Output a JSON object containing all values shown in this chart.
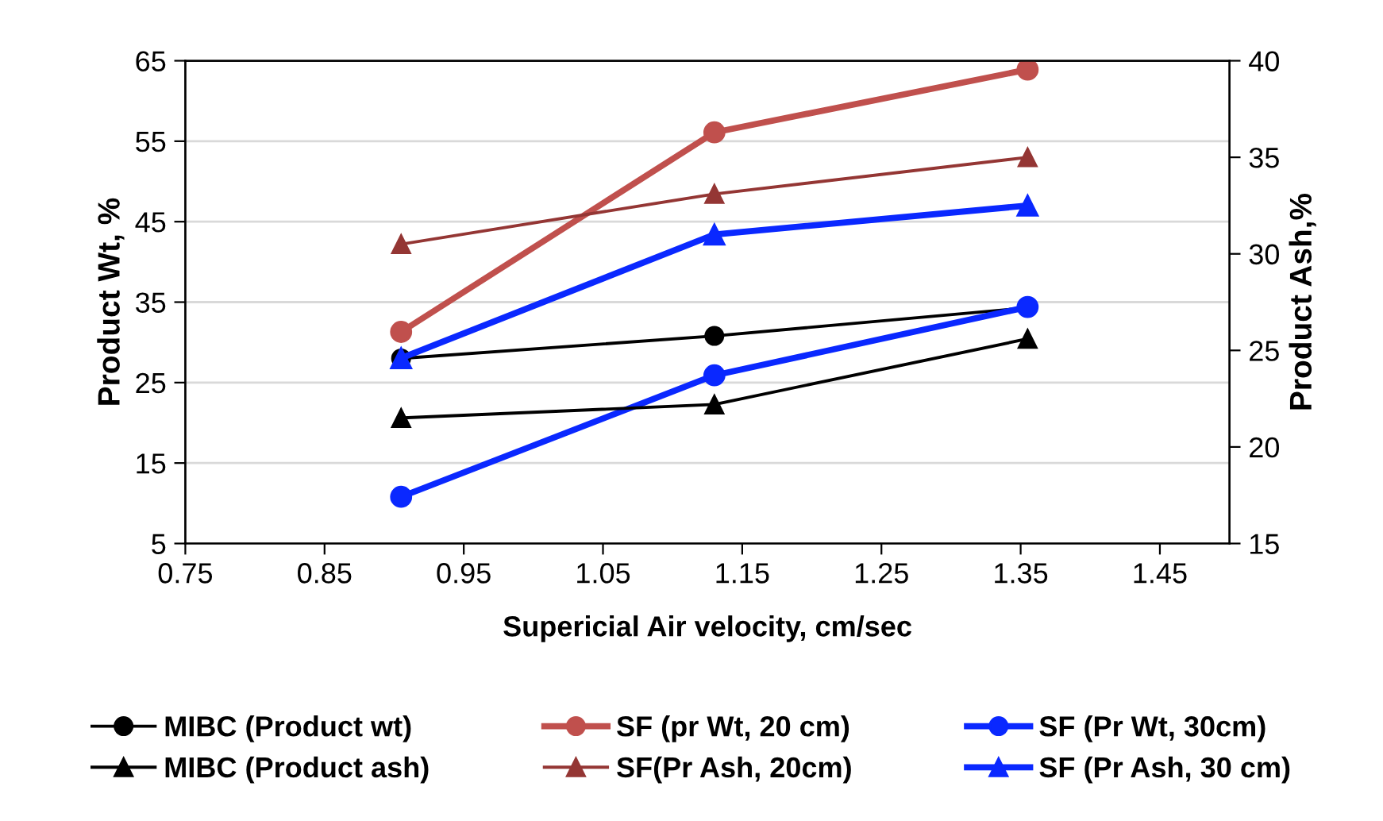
{
  "chart_data": {
    "type": "line",
    "xlabel": "Supericial Air velocity, cm/sec",
    "ylabel": "Product Wt, %",
    "y2label": "Product Ash,%",
    "x": [
      0.905,
      1.13,
      1.355
    ],
    "xlim": [
      0.75,
      1.5
    ],
    "xticks": [
      {
        "value": 0.75,
        "label": "0.75"
      },
      {
        "value": 0.85,
        "label": "0.85"
      },
      {
        "value": 0.95,
        "label": "0.95"
      },
      {
        "value": 1.05,
        "label": "1.05"
      },
      {
        "value": 1.15,
        "label": "1.15"
      },
      {
        "value": 1.25,
        "label": "1.25"
      },
      {
        "value": 1.35,
        "label": "1.35"
      },
      {
        "value": 1.45,
        "label": "1.45"
      }
    ],
    "ylim": [
      5,
      65
    ],
    "yticks": [
      5,
      15,
      25,
      35,
      45,
      55,
      65
    ],
    "y2lim": [
      15,
      40
    ],
    "y2ticks": [
      15,
      20,
      25,
      30,
      35,
      40
    ],
    "grid": "y",
    "legend": "bottom",
    "series": [
      {
        "name": "MIBC (Product wt)",
        "color": "#000000",
        "marker": "circle",
        "values": [
          28.0,
          30.8,
          34.3
        ]
      },
      {
        "name": "SF (pr Wt, 20 cm)",
        "color": "#c0504d",
        "marker": "circle",
        "values": [
          31.3,
          56.1,
          63.9
        ]
      },
      {
        "name": "SF (Pr Wt, 30cm)",
        "color": "#0a28ff",
        "marker": "circle",
        "values": [
          10.8,
          25.9,
          34.4
        ]
      },
      {
        "name": "MIBC (Product ash)",
        "color": "#000000",
        "marker": "triangle",
        "axis": "y2",
        "values": [
          21.5,
          22.2,
          25.6
        ]
      },
      {
        "name": "SF(Pr Ash, 20cm)",
        "color": "#943634",
        "marker": "triangle",
        "axis": "y2",
        "values": [
          30.5,
          33.1,
          35.0
        ]
      },
      {
        "name": "SF (Pr Ash, 30 cm)",
        "color": "#0a28ff",
        "marker": "triangle",
        "axis": "y2",
        "values": [
          24.6,
          31.0,
          32.5
        ]
      }
    ]
  }
}
